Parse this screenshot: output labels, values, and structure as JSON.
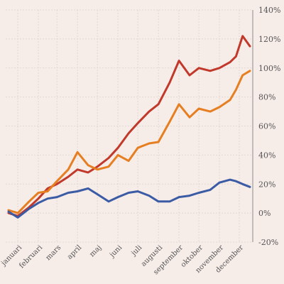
{
  "chart_data": {
    "type": "line",
    "title": "",
    "xlabel": "",
    "ylabel": "",
    "x_categories": [
      "januari",
      "februari",
      "mars",
      "april",
      "maj",
      "juni",
      "juli",
      "augusti",
      "september",
      "oktober",
      "november",
      "december"
    ],
    "y_ticks": [
      "-20%",
      "0%",
      "20%",
      "40%",
      "60%",
      "80%",
      "100%",
      "120%",
      "140%"
    ],
    "ylim": [
      -20,
      140
    ],
    "grid": true,
    "legend": "none",
    "series": [
      {
        "color": "#c0392b",
        "x": [
          "2023-01-01",
          "2023-01-15",
          "2023-02-01",
          "2023-02-15",
          "2023-03-01",
          "2023-03-15",
          "2023-04-01",
          "2023-04-15",
          "2023-05-01",
          "2023-05-15",
          "2023-06-01",
          "2023-06-15",
          "2023-07-01",
          "2023-07-15",
          "2023-08-01",
          "2023-08-15",
          "2023-09-01",
          "2023-09-15",
          "2023-10-01",
          "2023-10-15",
          "2023-11-01",
          "2023-11-15",
          "2023-12-01",
          "2023-12-10",
          "2023-12-20",
          "2023-12-31"
        ],
        "values": [
          0,
          -2,
          4,
          10,
          17,
          20,
          25,
          30,
          28,
          32,
          38,
          45,
          55,
          62,
          70,
          75,
          90,
          105,
          95,
          100,
          98,
          100,
          104,
          108,
          122,
          115
        ]
      },
      {
        "color": "#e67e22",
        "x": [
          "2023-01-01",
          "2023-01-15",
          "2023-02-01",
          "2023-02-15",
          "2023-03-01",
          "2023-03-15",
          "2023-04-01",
          "2023-04-15",
          "2023-05-01",
          "2023-05-15",
          "2023-06-01",
          "2023-06-15",
          "2023-07-01",
          "2023-07-15",
          "2023-08-01",
          "2023-08-15",
          "2023-09-01",
          "2023-09-15",
          "2023-10-01",
          "2023-10-15",
          "2023-11-01",
          "2023-11-15",
          "2023-12-01",
          "2023-12-10",
          "2023-12-20",
          "2023-12-31"
        ],
        "values": [
          2,
          0,
          8,
          14,
          15,
          22,
          30,
          42,
          33,
          30,
          32,
          40,
          36,
          45,
          48,
          49,
          63,
          75,
          66,
          72,
          70,
          73,
          78,
          85,
          95,
          98
        ]
      },
      {
        "color": "#3b5ba5",
        "x": [
          "2023-01-01",
          "2023-01-15",
          "2023-02-01",
          "2023-02-15",
          "2023-03-01",
          "2023-03-15",
          "2023-04-01",
          "2023-04-15",
          "2023-05-01",
          "2023-05-15",
          "2023-06-01",
          "2023-06-15",
          "2023-07-01",
          "2023-07-15",
          "2023-08-01",
          "2023-08-15",
          "2023-09-01",
          "2023-09-15",
          "2023-10-01",
          "2023-10-15",
          "2023-11-01",
          "2023-11-15",
          "2023-12-01",
          "2023-12-10",
          "2023-12-20",
          "2023-12-31"
        ],
        "values": [
          1,
          -3,
          3,
          7,
          10,
          11,
          14,
          15,
          17,
          13,
          8,
          11,
          14,
          15,
          12,
          8,
          8,
          11,
          12,
          14,
          16,
          21,
          23,
          22,
          20,
          18
        ]
      }
    ]
  }
}
